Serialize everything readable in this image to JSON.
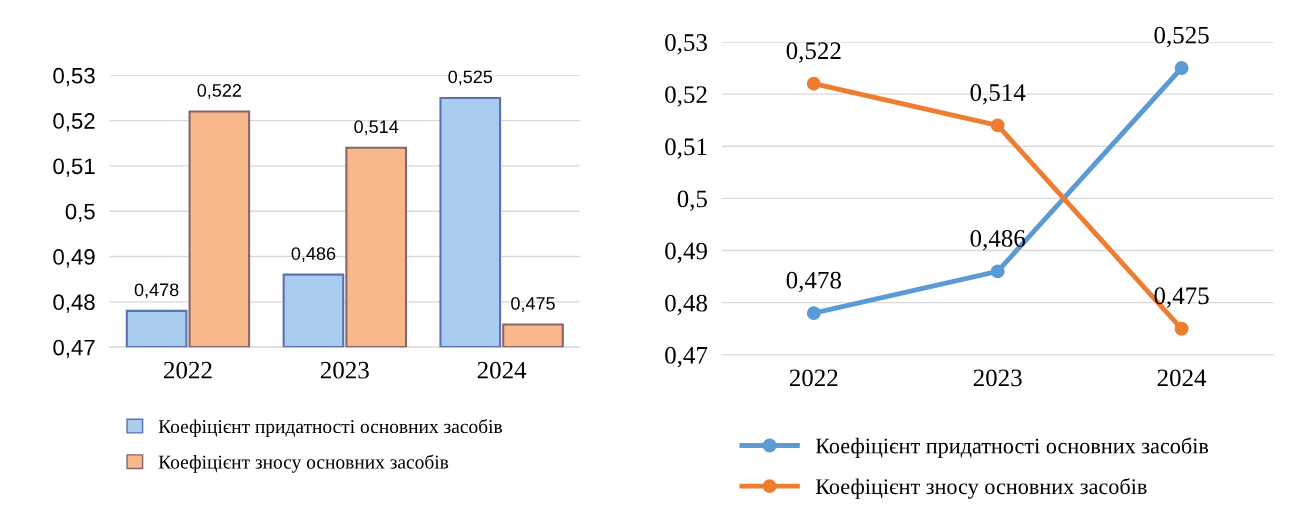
{
  "chart_data": [
    {
      "type": "bar",
      "categories": [
        "2022",
        "2023",
        "2024"
      ],
      "series": [
        {
          "name": "Коефіцієнт придатності основних засобів",
          "color": "#a9cdee",
          "values": [
            0.478,
            0.486,
            0.525
          ],
          "value_labels": [
            "0,478",
            "0,486",
            "0,525"
          ]
        },
        {
          "name": "Коефіцієнт зносу основних засобів",
          "color": "#f8b88b",
          "values": [
            0.522,
            0.514,
            0.475
          ],
          "value_labels": [
            "0,522",
            "0,514",
            "0,475"
          ]
        }
      ],
      "ylim": [
        0.47,
        0.53
      ],
      "yticks": [
        {
          "value": 0.47,
          "label": "0,47"
        },
        {
          "value": 0.48,
          "label": "0,48"
        },
        {
          "value": 0.49,
          "label": "0,49"
        },
        {
          "value": 0.5,
          "label": "0,5"
        },
        {
          "value": 0.51,
          "label": "0,51"
        },
        {
          "value": 0.52,
          "label": "0,52"
        },
        {
          "value": 0.53,
          "label": "0,53"
        }
      ],
      "grid": "y",
      "legend": "bottom"
    },
    {
      "type": "line",
      "categories": [
        "2022",
        "2023",
        "2024"
      ],
      "series": [
        {
          "name": "Коефіцієнт придатності основних засобів",
          "color": "#5b9bd5",
          "values": [
            0.478,
            0.486,
            0.525
          ],
          "value_labels": [
            "0,478",
            "0,486",
            "0,525"
          ]
        },
        {
          "name": "Коефіцієнт зносу основних засобів",
          "color": "#ed7d31",
          "values": [
            0.522,
            0.514,
            0.475
          ],
          "value_labels": [
            "0,522",
            "0,514",
            "0,475"
          ]
        }
      ],
      "ylim": [
        0.47,
        0.53
      ],
      "yticks": [
        {
          "value": 0.47,
          "label": "0,47"
        },
        {
          "value": 0.48,
          "label": "0,48"
        },
        {
          "value": 0.49,
          "label": "0,49"
        },
        {
          "value": 0.5,
          "label": "0,5"
        },
        {
          "value": 0.51,
          "label": "0,51"
        },
        {
          "value": 0.52,
          "label": "0,52"
        },
        {
          "value": 0.53,
          "label": "0,53"
        }
      ],
      "grid": "y",
      "legend": "bottom",
      "marker": "circle",
      "line_style": "solid"
    }
  ]
}
